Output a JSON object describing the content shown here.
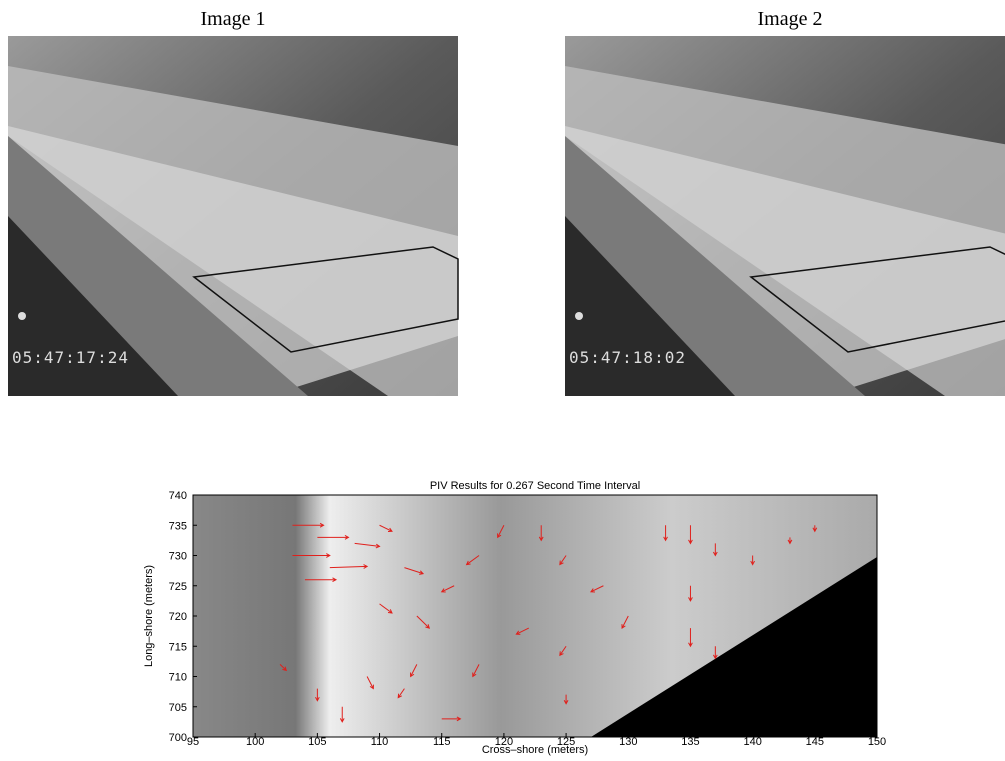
{
  "images": [
    {
      "title": "Image 1",
      "timestamp": "05:47:17:24"
    },
    {
      "title": "Image 2",
      "timestamp": "05:47:18:02"
    }
  ],
  "chart_data": {
    "type": "quiver",
    "title": "PIV  Results for 0.267 Second Time Interval",
    "x_label": "Cross–shore (meters)",
    "y_label": "Long–shore (meters)",
    "color": "#e0201c",
    "xlim": [
      95,
      150
    ],
    "xticks": [
      95,
      100,
      105,
      110,
      115,
      120,
      125,
      130,
      135,
      140,
      145,
      150
    ],
    "ylim": [
      700,
      740
    ],
    "yticks": [
      700,
      705,
      710,
      715,
      720,
      725,
      730,
      735,
      740
    ],
    "x": [
      103,
      105,
      103,
      106,
      104,
      108,
      110,
      112,
      110,
      113,
      116,
      118,
      120,
      123,
      125,
      128,
      130,
      133,
      135,
      137,
      135,
      135,
      140,
      143,
      145,
      137,
      122,
      125,
      118,
      105,
      107,
      109,
      112,
      115,
      113,
      125,
      102
    ],
    "y": [
      735,
      733,
      730,
      728,
      726,
      732,
      735,
      728,
      722,
      720,
      725,
      730,
      735,
      735,
      730,
      725,
      720,
      735,
      735,
      732,
      725,
      718,
      730,
      733,
      735,
      715,
      718,
      715,
      712,
      708,
      705,
      710,
      708,
      703,
      712,
      707,
      712
    ],
    "u": [
      2.5,
      2.5,
      3,
      3,
      2.5,
      2,
      1,
      1.5,
      1,
      1,
      -1,
      -1,
      -0.5,
      0,
      -0.5,
      -1,
      -0.5,
      0,
      0,
      0,
      0,
      0,
      0,
      0,
      0,
      0,
      -1,
      -0.5,
      -0.5,
      0,
      0,
      0.5,
      -0.5,
      1.5,
      -0.5,
      0,
      0.5
    ],
    "v": [
      0,
      0,
      0,
      0.2,
      0,
      -0.5,
      -1,
      -1,
      -1.5,
      -2,
      -1,
      -1.5,
      -2,
      -2.5,
      -1.5,
      -1,
      -2,
      -2.5,
      -3,
      -2,
      -2.5,
      -3,
      -1.5,
      -1,
      -1,
      -2,
      -1,
      -1.5,
      -2,
      -2,
      -2.5,
      -2,
      -1.5,
      0,
      -2,
      -1.5,
      -1
    ]
  }
}
